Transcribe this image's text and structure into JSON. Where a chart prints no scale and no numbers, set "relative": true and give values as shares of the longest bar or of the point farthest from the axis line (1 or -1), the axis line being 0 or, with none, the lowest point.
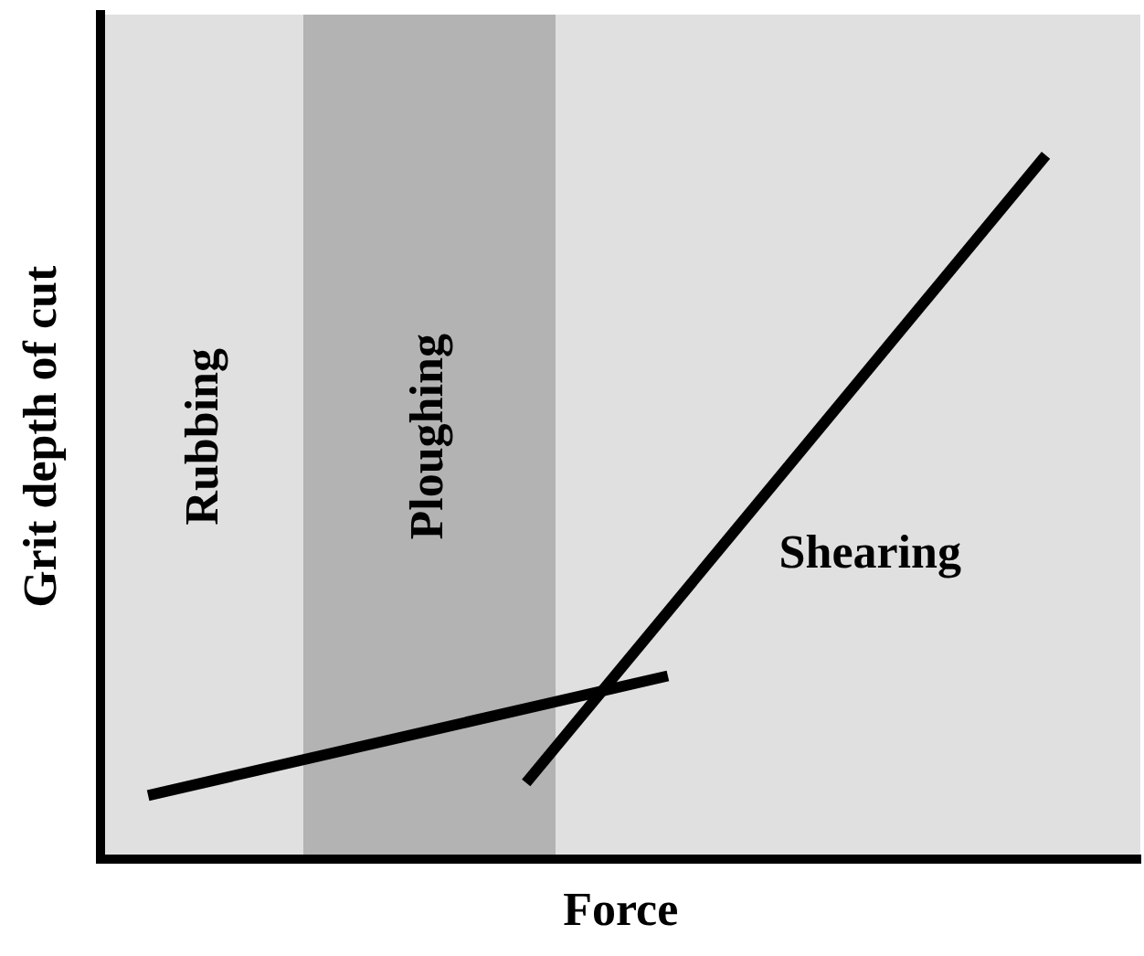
{
  "chart_data": {
    "type": "line",
    "relative": true,
    "xlabel": "Force",
    "ylabel": "Grit depth of cut",
    "marker": "none",
    "legend": false,
    "grid": false,
    "categories": [
      null,
      null,
      null,
      null,
      null,
      null,
      null,
      null,
      null,
      null,
      null,
      null,
      null,
      null,
      null,
      null,
      null,
      null,
      null,
      null,
      null,
      null,
      null
    ],
    "series": [
      {
        "values": [
          null,
          0.09,
          null,
          null,
          null,
          null,
          null,
          null,
          null,
          null,
          null,
          null,
          0.26,
          null,
          null,
          null,
          null,
          null,
          null,
          null,
          null,
          null,
          null
        ],
        "color": "#000000"
      },
      {
        "values": [
          null,
          null,
          null,
          null,
          null,
          null,
          null,
          null,
          null,
          0.108,
          null,
          null,
          null,
          null,
          null,
          null,
          null,
          null,
          null,
          null,
          1,
          null,
          null
        ],
        "color": "#000000"
      }
    ],
    "annotations": [
      "Rubbing",
      "Ploughing",
      "Shearing"
    ]
  }
}
